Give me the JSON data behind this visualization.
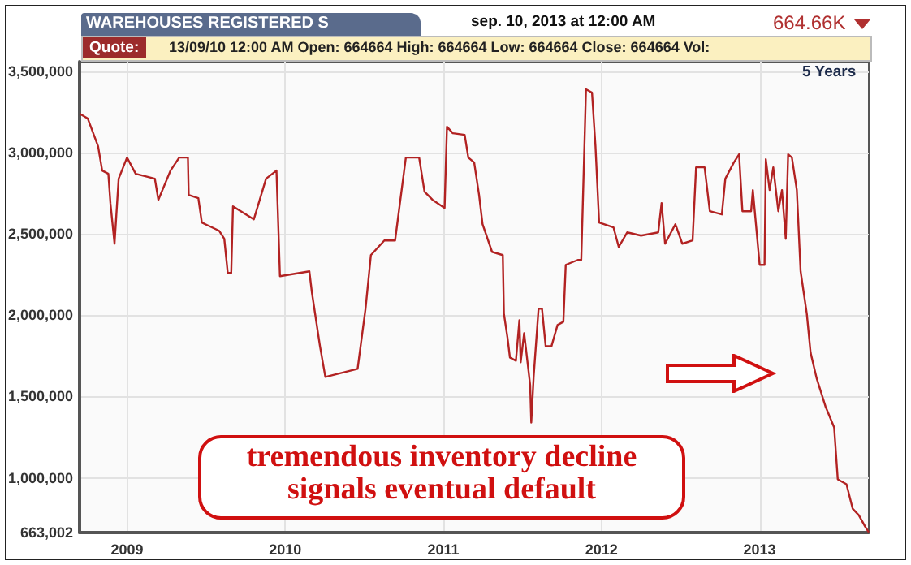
{
  "chart_data": {
    "type": "line",
    "title": "WAREHOUSES REGISTERED S",
    "annotations": [
      "sep. 10, 2013 at 12:00 AM",
      "664.66K",
      "Quote:",
      "13/09/10 12:00 AM Open: 664664 High: 664664 Low: 664664 Close: 664664 Vol:",
      "5 Years",
      "tremendous inventory decline signals eventual default"
    ],
    "x": [
      2008.7,
      2008.752,
      2008.817,
      2008.843,
      2008.882,
      2008.895,
      2008.921,
      2008.947,
      2009.0,
      2009.055,
      2009.176,
      2009.198,
      2009.275,
      2009.33,
      2009.385,
      2009.39,
      2009.451,
      2009.473,
      2009.582,
      2009.615,
      2009.637,
      2009.659,
      2009.67,
      2009.802,
      2009.879,
      2009.945,
      2009.967,
      2010.153,
      2010.169,
      2010.22,
      2010.254,
      2010.458,
      2010.508,
      2010.542,
      2010.627,
      2010.695,
      2010.763,
      2010.847,
      2010.881,
      2010.932,
      2011.008,
      2011.023,
      2011.06,
      2011.135,
      2011.158,
      2011.195,
      2011.226,
      2011.248,
      2011.308,
      2011.376,
      2011.383,
      2011.406,
      2011.421,
      2011.459,
      2011.481,
      2011.489,
      2011.511,
      2011.549,
      2011.556,
      2011.571,
      2011.602,
      2011.624,
      2011.647,
      2011.684,
      2011.722,
      2011.759,
      2011.774,
      2011.85,
      2011.872,
      2011.902,
      2011.94,
      2011.962,
      2011.985,
      2012.076,
      2012.109,
      2012.163,
      2012.25,
      2012.359,
      2012.38,
      2012.402,
      2012.467,
      2012.511,
      2012.576,
      2012.598,
      2012.652,
      2012.685,
      2012.761,
      2012.783,
      2012.837,
      2012.87,
      2012.891,
      2012.946,
      2012.957,
      2013.0,
      2013.031,
      2013.039,
      2013.063,
      2013.086,
      2013.118,
      2013.141,
      2013.165,
      2013.18,
      2013.204,
      2013.235,
      2013.259,
      2013.298,
      2013.322,
      2013.361,
      2013.416,
      2013.471,
      2013.494,
      2013.549,
      2013.588,
      2013.627,
      2013.667,
      2013.69
    ],
    "series": [
      {
        "color": "#b22222",
        "values": [
          3240000,
          3210000,
          3040000,
          2890000,
          2870000,
          2690000,
          2440000,
          2840000,
          2970000,
          2870000,
          2840000,
          2710000,
          2890000,
          2970000,
          2970000,
          2740000,
          2720000,
          2570000,
          2520000,
          2470000,
          2260000,
          2260000,
          2670000,
          2590000,
          2840000,
          2890000,
          2240000,
          2270000,
          2140000,
          1810000,
          1620000,
          1670000,
          2040000,
          2370000,
          2460000,
          2460000,
          2970000,
          2970000,
          2760000,
          2710000,
          2660000,
          3160000,
          3120000,
          3110000,
          2970000,
          2940000,
          2740000,
          2560000,
          2390000,
          2370000,
          2010000,
          1860000,
          1740000,
          1720000,
          1970000,
          1710000,
          1890000,
          1570000,
          1340000,
          1620000,
          2040000,
          2040000,
          1810000,
          1810000,
          1940000,
          1960000,
          2310000,
          2340000,
          2340000,
          3390000,
          3370000,
          3040000,
          2570000,
          2540000,
          2420000,
          2510000,
          2490000,
          2510000,
          2690000,
          2440000,
          2560000,
          2440000,
          2460000,
          2910000,
          2910000,
          2640000,
          2620000,
          2840000,
          2940000,
          2990000,
          2640000,
          2640000,
          2770000,
          2310000,
          2310000,
          2960000,
          2770000,
          2910000,
          2640000,
          2770000,
          2470000,
          2990000,
          2970000,
          2770000,
          2270000,
          2010000,
          1770000,
          1610000,
          1440000,
          1310000,
          990000,
          960000,
          810000,
          770000,
          700000,
          664664
        ]
      }
    ],
    "xlim": [
      2008.7,
      2013.69
    ],
    "xticks": [
      2009,
      2010,
      2011,
      2012,
      2013
    ],
    "ylim": [
      663002,
      3560000
    ],
    "yticks": [
      {
        "value": 663002,
        "label": "663,002"
      },
      {
        "value": 1000000,
        "label": "1,000,000"
      },
      {
        "value": 1500000,
        "label": "1,500,000"
      },
      {
        "value": 2000000,
        "label": "2,000,000"
      },
      {
        "value": 2500000,
        "label": "2,500,000"
      },
      {
        "value": 3000000,
        "label": "3,000,000"
      },
      {
        "value": 3500000,
        "label": "3,500,000"
      }
    ],
    "grid": true,
    "marker": "none",
    "line_style": "solid"
  }
}
